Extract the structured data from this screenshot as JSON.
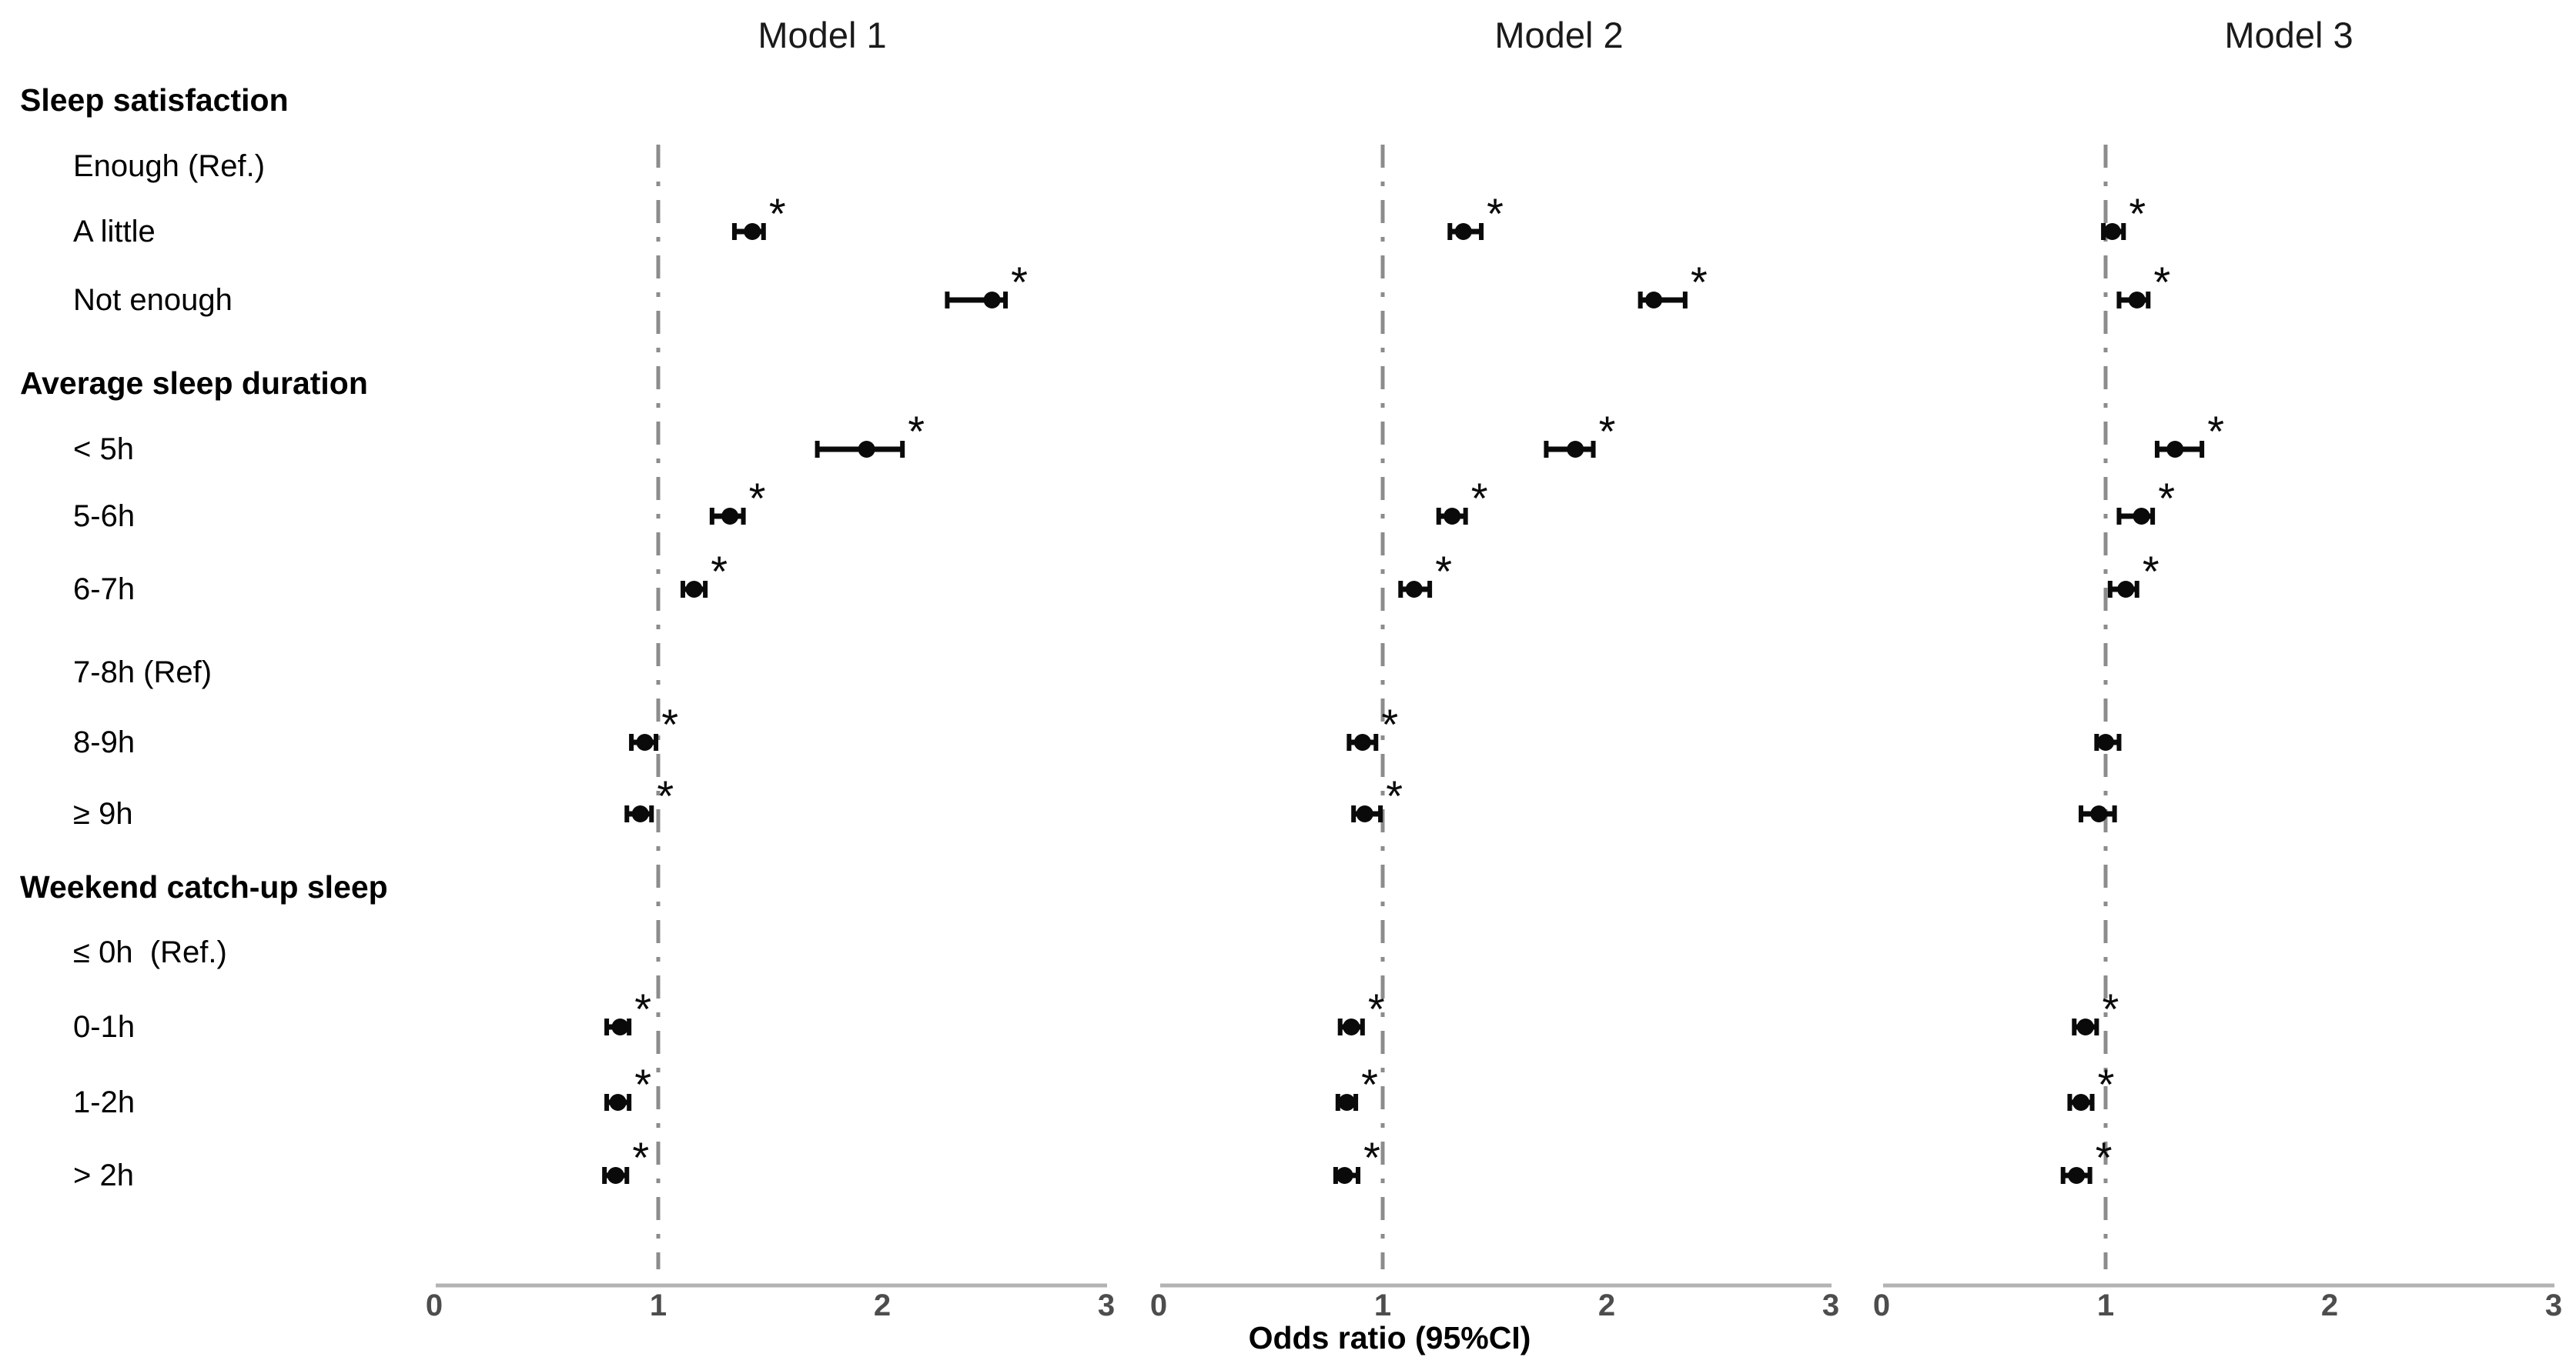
{
  "chart_data": {
    "type": "forest",
    "xlabel": "Odds ratio (95%CI)",
    "x_range": [
      0,
      3
    ],
    "x_ticks": [
      0,
      1,
      2,
      3
    ],
    "x_tick_labels": [
      "0",
      "1",
      "2",
      "3"
    ],
    "reference_line": 1.0,
    "grid": false,
    "significance_marker": "*",
    "models": [
      "Model 1",
      "Model 2",
      "Model 3"
    ],
    "rows": [
      {
        "label": "Sleep satisfaction",
        "kind": "group",
        "estimates": null
      },
      {
        "label": "Enough (Ref.)",
        "kind": "reference",
        "estimates": null
      },
      {
        "label": "A little",
        "kind": "item",
        "estimates": [
          {
            "or": 1.42,
            "ci": [
              1.34,
              1.47
            ],
            "sig": true
          },
          {
            "or": 1.36,
            "ci": [
              1.3,
              1.44
            ],
            "sig": true
          },
          {
            "or": 1.03,
            "ci": [
              0.99,
              1.08
            ],
            "sig": true
          }
        ]
      },
      {
        "label": "Not enough",
        "kind": "item",
        "estimates": [
          {
            "or": 2.49,
            "ci": [
              2.29,
              2.55
            ],
            "sig": true
          },
          {
            "or": 2.21,
            "ci": [
              2.15,
              2.35
            ],
            "sig": true
          },
          {
            "or": 1.14,
            "ci": [
              1.06,
              1.19
            ],
            "sig": true
          }
        ]
      },
      {
        "label": "Average sleep duration",
        "kind": "group",
        "estimates": null
      },
      {
        "label": "< 5h",
        "kind": "item",
        "estimates": [
          {
            "or": 1.93,
            "ci": [
              1.71,
              2.09
            ],
            "sig": true
          },
          {
            "or": 1.86,
            "ci": [
              1.73,
              1.94
            ],
            "sig": true
          },
          {
            "or": 1.31,
            "ci": [
              1.23,
              1.43
            ],
            "sig": true
          }
        ]
      },
      {
        "label": "5-6h",
        "kind": "item",
        "estimates": [
          {
            "or": 1.32,
            "ci": [
              1.24,
              1.38
            ],
            "sig": true
          },
          {
            "or": 1.31,
            "ci": [
              1.25,
              1.37
            ],
            "sig": true
          },
          {
            "or": 1.16,
            "ci": [
              1.06,
              1.21
            ],
            "sig": true
          }
        ]
      },
      {
        "label": "6-7h",
        "kind": "item",
        "estimates": [
          {
            "or": 1.16,
            "ci": [
              1.11,
              1.21
            ],
            "sig": true
          },
          {
            "or": 1.14,
            "ci": [
              1.08,
              1.21
            ],
            "sig": true
          },
          {
            "or": 1.09,
            "ci": [
              1.02,
              1.14
            ],
            "sig": true
          }
        ]
      },
      {
        "label": "7-8h (Ref)",
        "kind": "reference",
        "estimates": null
      },
      {
        "label": "8-9h",
        "kind": "item",
        "estimates": [
          {
            "or": 0.94,
            "ci": [
              0.88,
              0.99
            ],
            "sig": true
          },
          {
            "or": 0.91,
            "ci": [
              0.85,
              0.97
            ],
            "sig": true
          },
          {
            "or": 1.0,
            "ci": [
              0.96,
              1.06
            ],
            "sig": false
          }
        ]
      },
      {
        "label": "≥ 9h",
        "kind": "item",
        "estimates": [
          {
            "or": 0.92,
            "ci": [
              0.86,
              0.97
            ],
            "sig": true
          },
          {
            "or": 0.92,
            "ci": [
              0.87,
              0.99
            ],
            "sig": true
          },
          {
            "or": 0.97,
            "ci": [
              0.89,
              1.04
            ],
            "sig": false
          }
        ]
      },
      {
        "label": "Weekend catch-up sleep",
        "kind": "group",
        "estimates": null
      },
      {
        "label": "≤ 0h  (Ref.)",
        "kind": "reference",
        "estimates": null
      },
      {
        "label": "0-1h",
        "kind": "item",
        "estimates": [
          {
            "or": 0.83,
            "ci": [
              0.77,
              0.87
            ],
            "sig": true
          },
          {
            "or": 0.86,
            "ci": [
              0.81,
              0.91
            ],
            "sig": true
          },
          {
            "or": 0.91,
            "ci": [
              0.86,
              0.96
            ],
            "sig": true
          }
        ]
      },
      {
        "label": "1-2h",
        "kind": "item",
        "estimates": [
          {
            "or": 0.82,
            "ci": [
              0.77,
              0.87
            ],
            "sig": true
          },
          {
            "or": 0.84,
            "ci": [
              0.8,
              0.88
            ],
            "sig": true
          },
          {
            "or": 0.89,
            "ci": [
              0.84,
              0.94
            ],
            "sig": true
          }
        ]
      },
      {
        "label": "> 2h",
        "kind": "item",
        "estimates": [
          {
            "or": 0.81,
            "ci": [
              0.76,
              0.86
            ],
            "sig": true
          },
          {
            "or": 0.83,
            "ci": [
              0.79,
              0.89
            ],
            "sig": true
          },
          {
            "or": 0.87,
            "ci": [
              0.81,
              0.93
            ],
            "sig": true
          }
        ]
      }
    ],
    "colors": {
      "marker": "#0a0a0a",
      "axis_line": "#b3b3b3",
      "reference_line": "#8c8c8c",
      "tick_text": "#4d4d4d",
      "label_text": "#000000"
    }
  }
}
